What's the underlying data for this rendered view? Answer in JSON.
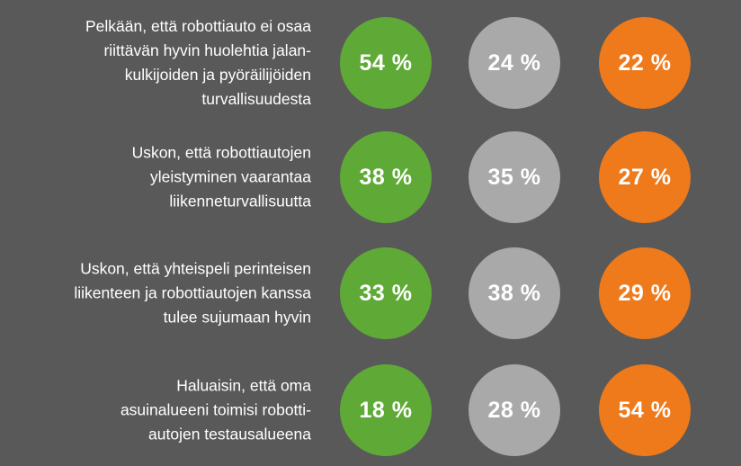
{
  "colors": {
    "background": "#595959",
    "green": "#5faa36",
    "grey": "#a9a9a9",
    "orange": "#ee7a1c",
    "text": "#ffffff"
  },
  "chart_data": {
    "type": "table",
    "title": "",
    "rows": [
      {
        "label": "Pelkään, että robottiauto ei osaa\nriittävän hyvin huolehtia jalan-\nkulkijoiden ja pyöräilijöiden\nturvallisuudesta",
        "values": [
          "54 %",
          "24 %",
          "22 %"
        ]
      },
      {
        "label": "Uskon, että robottiautojen\nyleistyminen vaarantaa\nliikenneturvallisuutta",
        "values": [
          "38 %",
          "35 %",
          "27 %"
        ]
      },
      {
        "label": "Uskon, että yhteispeli perinteisen\nliikenteen ja robottiautojen kanssa\ntulee sujumaan hyvin",
        "values": [
          "33 %",
          "38 %",
          "29 %"
        ]
      },
      {
        "label": "Haluaisin, että oma\nasuinalueeni toimisi robotti-\nautojen testausalueena",
        "values": [
          "18 %",
          "28 %",
          "54 %"
        ]
      }
    ]
  }
}
